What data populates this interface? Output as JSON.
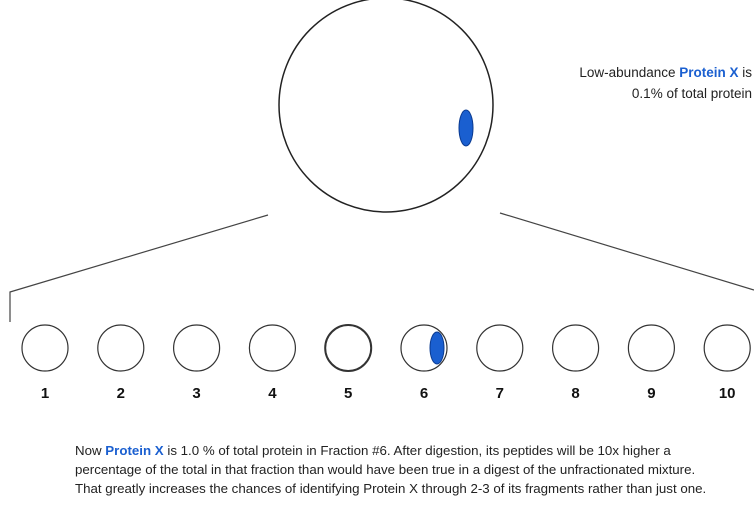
{
  "callout": {
    "before": "Low-abundance ",
    "highlight": "Protein X",
    "after": " is 0.1% of total protein"
  },
  "fractions": [
    "1",
    "2",
    "3",
    "4",
    "5",
    "6",
    "7",
    "8",
    "9",
    "10"
  ],
  "paragraph": {
    "before": "Now ",
    "highlight": "Protein X",
    "after": " is 1.0 % of total protein in Fraction #6.  After digestion, its peptides will be 10x higher a percentage of the total in that fraction than would have been true in a digest of the unfractionated mixture.  That greatly increases the chances of identifying Protein X through 2-3 of its fragments rather than just one."
  }
}
